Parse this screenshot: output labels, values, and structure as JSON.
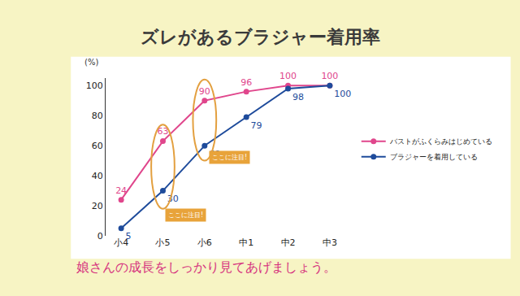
{
  "chart_data": {
    "type": "line",
    "title": "ズレがあるブラジャー着用率",
    "caption": "娘さんの成長をしっかり見てあげましょう。",
    "ylabel": "(%)",
    "categories": [
      "小4",
      "小5",
      "小6",
      "中1",
      "中2",
      "中3"
    ],
    "series": [
      {
        "name": "バストがふくらみはじめている",
        "color": "#e0468c",
        "values": [
          24,
          63,
          90,
          96,
          100,
          100
        ]
      },
      {
        "name": "ブラジャーを着用している",
        "color": "#1e4b9b",
        "values": [
          5,
          30,
          60,
          79,
          98,
          100
        ]
      }
    ],
    "ylim": [
      0,
      105
    ],
    "yticks": [
      0,
      20,
      40,
      60,
      80,
      100
    ],
    "grid": false,
    "legend": "right",
    "data_labels": true,
    "marker": "circle",
    "annotations": [
      "ここに注目!",
      "ここに注目!"
    ]
  }
}
